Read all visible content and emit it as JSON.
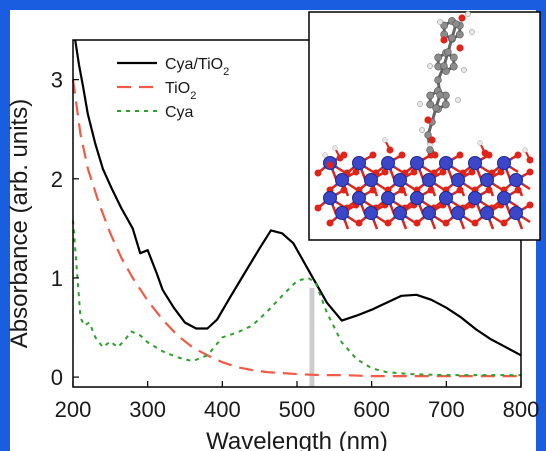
{
  "accent_color": "#1b5de0",
  "chart_data": {
    "type": "line",
    "title": "",
    "xlabel": "Wavelength (nm)",
    "ylabel": "Absorbance (arb. units)",
    "xlim": [
      200,
      800
    ],
    "ylim": [
      -0.1,
      3.4
    ],
    "xticks": [
      200,
      300,
      400,
      500,
      600,
      700,
      800
    ],
    "yticks": [
      0,
      1,
      2,
      3
    ],
    "marker_line": {
      "x": 520,
      "y_top": 0.9,
      "color": "#cccccc"
    },
    "legend": {
      "position": "top-right"
    },
    "series": [
      {
        "name": "Cya/TiO2",
        "name_main": "Cya/TiO",
        "name_sub": "2",
        "style": "solid",
        "color": "#000000",
        "x": [
          203,
          208,
          213,
          220,
          230,
          240,
          252,
          265,
          280,
          290,
          300,
          312,
          320,
          335,
          350,
          365,
          380,
          393,
          410,
          430,
          450,
          465,
          480,
          495,
          510,
          525,
          540,
          560,
          580,
          600,
          620,
          640,
          660,
          680,
          700,
          720,
          740,
          760,
          780,
          800
        ],
        "y": [
          3.4,
          3.15,
          2.95,
          2.65,
          2.35,
          2.1,
          1.9,
          1.7,
          1.5,
          1.25,
          1.28,
          1.05,
          0.88,
          0.7,
          0.55,
          0.49,
          0.49,
          0.58,
          0.8,
          1.05,
          1.3,
          1.48,
          1.45,
          1.35,
          1.15,
          0.95,
          0.75,
          0.57,
          0.62,
          0.68,
          0.75,
          0.82,
          0.83,
          0.78,
          0.7,
          0.6,
          0.48,
          0.38,
          0.3,
          0.22
        ]
      },
      {
        "name": "TiO2",
        "name_main": "TiO",
        "name_sub": "2",
        "style": "dashed",
        "color": "#f05a46",
        "x": [
          200,
          210,
          220,
          235,
          250,
          265,
          280,
          300,
          320,
          340,
          360,
          380,
          400,
          420,
          440,
          460,
          480,
          500,
          530,
          560,
          600,
          700,
          800
        ],
        "y": [
          3.0,
          2.45,
          2.1,
          1.75,
          1.45,
          1.2,
          1.0,
          0.77,
          0.58,
          0.42,
          0.3,
          0.22,
          0.15,
          0.1,
          0.07,
          0.05,
          0.04,
          0.03,
          0.02,
          0.02,
          0.01,
          0.01,
          0.01
        ]
      },
      {
        "name": "Cya",
        "name_main": "Cya",
        "name_sub": "",
        "style": "dotted",
        "color": "#2ca02c",
        "x": [
          200,
          205,
          210,
          215,
          222,
          230,
          240,
          250,
          260,
          270,
          278,
          290,
          300,
          320,
          340,
          360,
          380,
          400,
          420,
          440,
          460,
          480,
          500,
          515,
          525,
          540,
          560,
          580,
          600,
          620,
          650,
          700,
          750,
          800
        ],
        "y": [
          1.58,
          1.1,
          0.6,
          0.52,
          0.55,
          0.4,
          0.3,
          0.36,
          0.3,
          0.38,
          0.46,
          0.42,
          0.35,
          0.26,
          0.2,
          0.16,
          0.22,
          0.4,
          0.45,
          0.52,
          0.66,
          0.82,
          0.97,
          1.0,
          0.95,
          0.65,
          0.35,
          0.18,
          0.09,
          0.05,
          0.03,
          0.02,
          0.02,
          0.02
        ]
      }
    ]
  },
  "inset": {
    "label": "cyanidin-TiO2 molecular model",
    "atom_colors": {
      "titanium": "#3c46c8",
      "oxygen": "#e0241a",
      "carbon": "#8c8c8c",
      "hydrogen": "#e8e8e8"
    }
  }
}
